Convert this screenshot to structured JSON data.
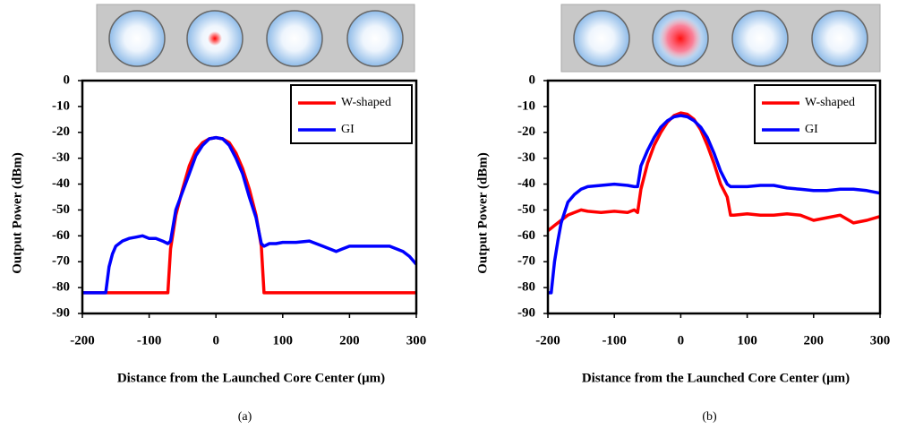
{
  "chart_data": [
    {
      "type": "line",
      "panel_label": "(a)",
      "x_label": "Distance from the Launched Core Center (μm)",
      "y_label": "Output Power (dBm)",
      "x": [
        -200,
        -165,
        -160,
        -155,
        -150,
        -140,
        -130,
        -120,
        -110,
        -100,
        -90,
        -80,
        -72,
        -68,
        -60,
        -50,
        -40,
        -30,
        -20,
        -10,
        0,
        10,
        20,
        30,
        40,
        50,
        60,
        68,
        72,
        80,
        90,
        100,
        120,
        140,
        160,
        180,
        200,
        220,
        240,
        260,
        280,
        290,
        300
      ],
      "series": [
        {
          "name": "W-shaped",
          "color": "#ff0000",
          "values": [
            -82,
            -82,
            -82,
            -82,
            -82,
            -82,
            -82,
            -82,
            -82,
            -82,
            -82,
            -82,
            -82,
            -65,
            -52,
            -42,
            -33,
            -27,
            -24,
            -22.5,
            -22,
            -22.5,
            -24,
            -28,
            -34,
            -42,
            -52,
            -64,
            -82,
            -82,
            -82,
            -82,
            -82,
            -82,
            -82,
            -82,
            -82,
            -82,
            -82,
            -82,
            -82,
            -82,
            -82
          ]
        },
        {
          "name": "GI",
          "color": "#0000ff",
          "values": [
            -82,
            -82,
            -72,
            -67,
            -64,
            -62,
            -61,
            -60.5,
            -60,
            -61,
            -61,
            -62,
            -63,
            -62,
            -50,
            -43,
            -36,
            -29,
            -25,
            -22.5,
            -22,
            -22.5,
            -25,
            -30,
            -36,
            -45,
            -53,
            -63,
            -64,
            -63,
            -63,
            -62.5,
            -62.5,
            -62,
            -64,
            -66,
            -64,
            -64,
            -64,
            -64,
            -66,
            -68,
            -71
          ]
        }
      ],
      "xlim": [
        -200,
        300
      ],
      "ylim": [
        -90,
        0
      ],
      "xticks": [
        -200,
        -100,
        0,
        100,
        200,
        300
      ],
      "yticks": [
        0,
        -10,
        -20,
        -30,
        -40,
        -50,
        -60,
        -70,
        -80,
        -90
      ],
      "legend": "upper right"
    },
    {
      "type": "line",
      "panel_label": "(b)",
      "x_label": "Distance from the Launched Core Center (μm)",
      "y_label": "Output Power (dBm)",
      "x": [
        -200,
        -195,
        -190,
        -185,
        -180,
        -170,
        -160,
        -150,
        -140,
        -120,
        -100,
        -80,
        -70,
        -65,
        -60,
        -50,
        -40,
        -30,
        -20,
        -10,
        0,
        10,
        20,
        30,
        40,
        50,
        60,
        70,
        75,
        80,
        100,
        120,
        140,
        160,
        180,
        200,
        220,
        240,
        260,
        280,
        300
      ],
      "series": [
        {
          "name": "W-shaped",
          "color": "#ff0000",
          "values": [
            -58,
            -57,
            -56,
            -55,
            -54,
            -52,
            -51,
            -50,
            -50.5,
            -51,
            -50.5,
            -51,
            -50,
            -51,
            -42,
            -32,
            -25,
            -20,
            -16,
            -13.5,
            -12.5,
            -13,
            -15,
            -19,
            -25,
            -32,
            -40,
            -45,
            -52,
            -52,
            -51.5,
            -52,
            -52,
            -51.5,
            -52,
            -54,
            -53,
            -52,
            -55,
            -54,
            -52.5
          ]
        },
        {
          "name": "GI",
          "color": "#0000ff",
          "values": [
            -82,
            -82,
            -70,
            -62,
            -55,
            -47,
            -44,
            -42,
            -41,
            -40.5,
            -40,
            -40.5,
            -41,
            -41,
            -33,
            -27,
            -22,
            -18,
            -15.5,
            -14,
            -13.5,
            -14,
            -15.5,
            -18,
            -22,
            -28,
            -35,
            -40,
            -41,
            -41,
            -41,
            -40.5,
            -40.5,
            -41.5,
            -42,
            -42.5,
            -42.5,
            -42,
            -42,
            -42.5,
            -43.5
          ]
        }
      ],
      "xlim": [
        -200,
        300
      ],
      "ylim": [
        -90,
        0
      ],
      "xticks": [
        -200,
        -100,
        0,
        100,
        200,
        300
      ],
      "yticks": [
        0,
        -10,
        -20,
        -30,
        -40,
        -50,
        -60,
        -70,
        -80,
        -90
      ],
      "legend": "upper right"
    }
  ]
}
